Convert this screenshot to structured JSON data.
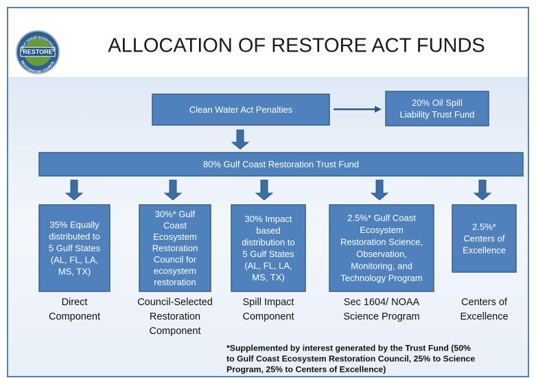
{
  "header": {
    "title": "ALLOCATION OF RESTORE ACT FUNDS",
    "logo": {
      "center": "RESTORE",
      "top": "GULF COAST ECOSYSTEM",
      "bottom": "RESTORATION COUNCIL"
    }
  },
  "nodes": [
    {
      "lines": [
        "Clean Water Act Penalties"
      ]
    },
    {
      "lines": [
        "20% Oil Spill",
        "Liability Trust Fund"
      ]
    },
    {
      "lines": [
        "80% Gulf Coast Restoration Trust Fund"
      ]
    },
    {
      "lines": [
        "35% Equally",
        "distributed to",
        "5 Gulf States",
        "(AL, FL, LA,",
        "MS, TX)"
      ],
      "caption": [
        "Direct",
        "Component"
      ]
    },
    {
      "lines": [
        "30%* Gulf",
        "Coast",
        "Ecosystem",
        "Restoration",
        "Council for",
        "ecosystem",
        "restoration"
      ],
      "caption": [
        "Council-Selected",
        "Restoration",
        "Component"
      ]
    },
    {
      "lines": [
        "30% Impact",
        "based",
        "distribution to",
        "5 Gulf States",
        "(AL, FL, LA,",
        "MS, TX)"
      ],
      "caption": [
        "Spill Impact",
        "Component"
      ]
    },
    {
      "lines": [
        "2.5%* Gulf Coast",
        "Ecosystem",
        "Restoration Science,",
        "Observation,",
        "Monitoring, and",
        "Technology Program"
      ],
      "caption": [
        "Sec 1604/ NOAA",
        "Science Program"
      ]
    },
    {
      "lines": [
        "2.5%*",
        "Centers of",
        "Excellence"
      ],
      "caption": [
        "Centers of",
        "Excellence"
      ]
    }
  ],
  "footnote": [
    "*Supplemented by interest generated by the Trust Fund (50%",
    "to Gulf Coast Ecosystem Restoration Council, 25% to Science",
    "Program, 25% to Centers of Excellence)"
  ]
}
